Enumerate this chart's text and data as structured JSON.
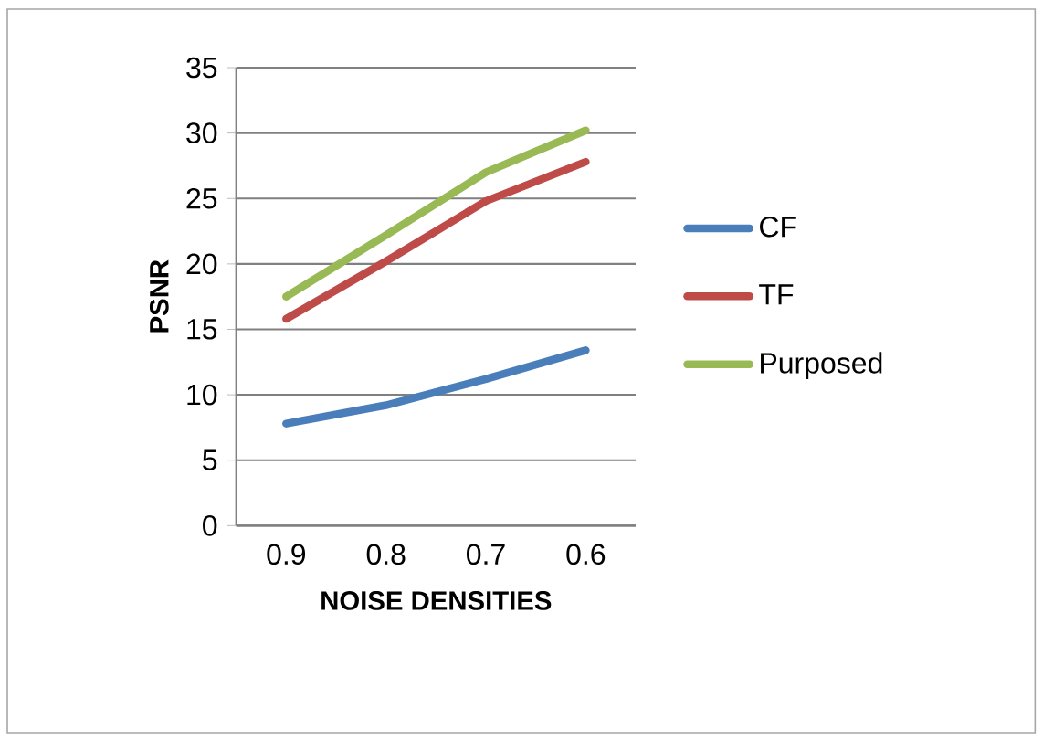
{
  "chart_data": {
    "type": "line",
    "xlabel": "NOISE DENSITIES",
    "ylabel": "PSNR",
    "categories": [
      "0.9",
      "0.8",
      "0.7",
      "0.6"
    ],
    "series": [
      {
        "name": "CF",
        "color": "#4a7ebb",
        "values": [
          7.8,
          9.2,
          11.2,
          13.4
        ]
      },
      {
        "name": "TF",
        "color": "#be4b48",
        "values": [
          15.8,
          20.2,
          24.8,
          27.8
        ]
      },
      {
        "name": "Purposed",
        "color": "#98b954",
        "values": [
          17.5,
          22.2,
          27.0,
          30.2
        ]
      }
    ],
    "ylim": [
      0,
      35
    ],
    "yticks": [
      0,
      5,
      10,
      15,
      20,
      25,
      30,
      35
    ],
    "grid": "y",
    "legend": "right",
    "marker": "none",
    "line_style": "solid"
  }
}
